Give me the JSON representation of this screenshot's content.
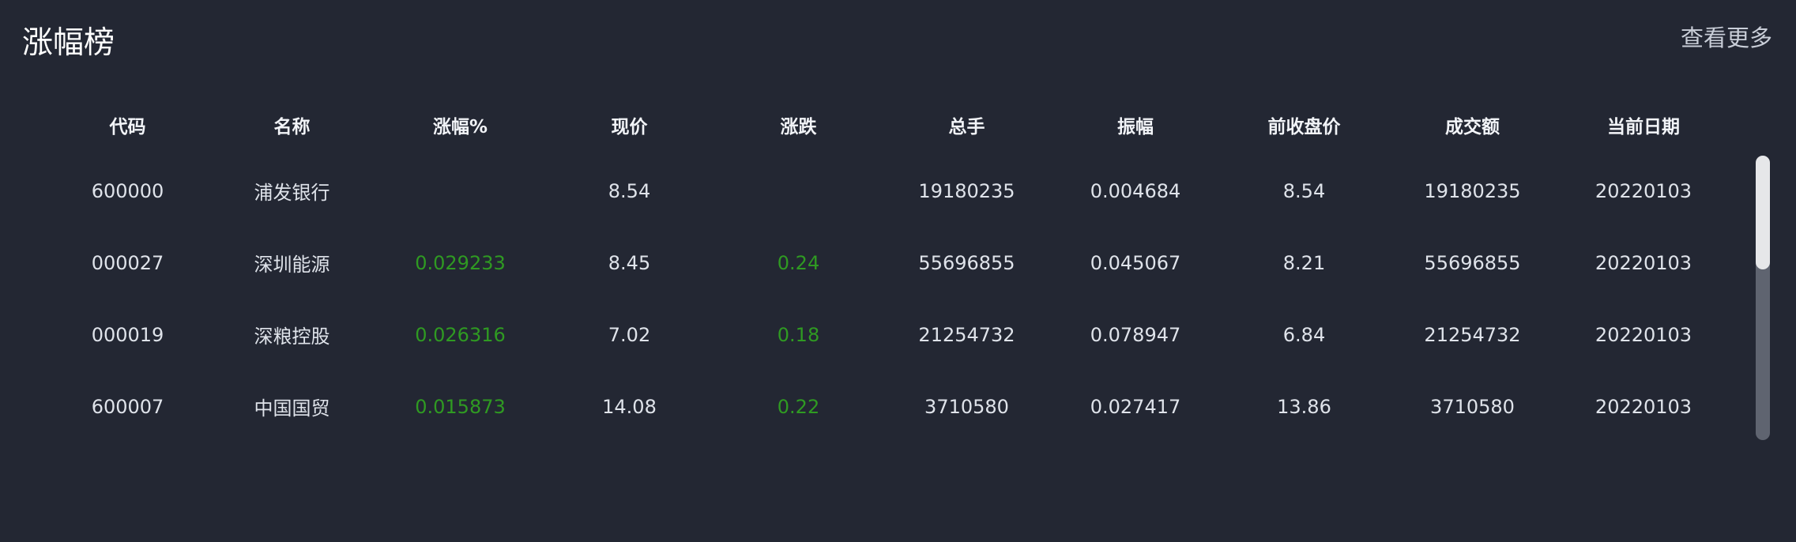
{
  "panel": {
    "title": "涨幅榜",
    "more_link": "查看更多"
  },
  "table": {
    "columns": [
      "代码",
      "名称",
      "涨幅%",
      "现价",
      "涨跌",
      "总手",
      "振幅",
      "前收盘价",
      "成交额",
      "当前日期"
    ],
    "rows": [
      {
        "code": "600000",
        "name": "浦发银行",
        "change_pct": "",
        "price": "8.54",
        "change": "",
        "volume": "19180235",
        "amplitude": "0.004684",
        "prev_close": "8.54",
        "turnover": "19180235",
        "date": "20220103"
      },
      {
        "code": "000027",
        "name": "深圳能源",
        "change_pct": "0.029233",
        "price": "8.45",
        "change": "0.24",
        "volume": "55696855",
        "amplitude": "0.045067",
        "prev_close": "8.21",
        "turnover": "55696855",
        "date": "20220103"
      },
      {
        "code": "000019",
        "name": "深粮控股",
        "change_pct": "0.026316",
        "price": "7.02",
        "change": "0.18",
        "volume": "21254732",
        "amplitude": "0.078947",
        "prev_close": "6.84",
        "turnover": "21254732",
        "date": "20220103"
      },
      {
        "code": "600007",
        "name": "中国国贸",
        "change_pct": "0.015873",
        "price": "14.08",
        "change": "0.22",
        "volume": "3710580",
        "amplitude": "0.027417",
        "prev_close": "13.86",
        "turnover": "3710580",
        "date": "20220103"
      }
    ]
  },
  "colors": {
    "background": "#232733",
    "text": "#dfe3ea",
    "up": "#2f9a22",
    "scroll_track": "#5f6470",
    "scroll_thumb": "#e6e7e9"
  }
}
